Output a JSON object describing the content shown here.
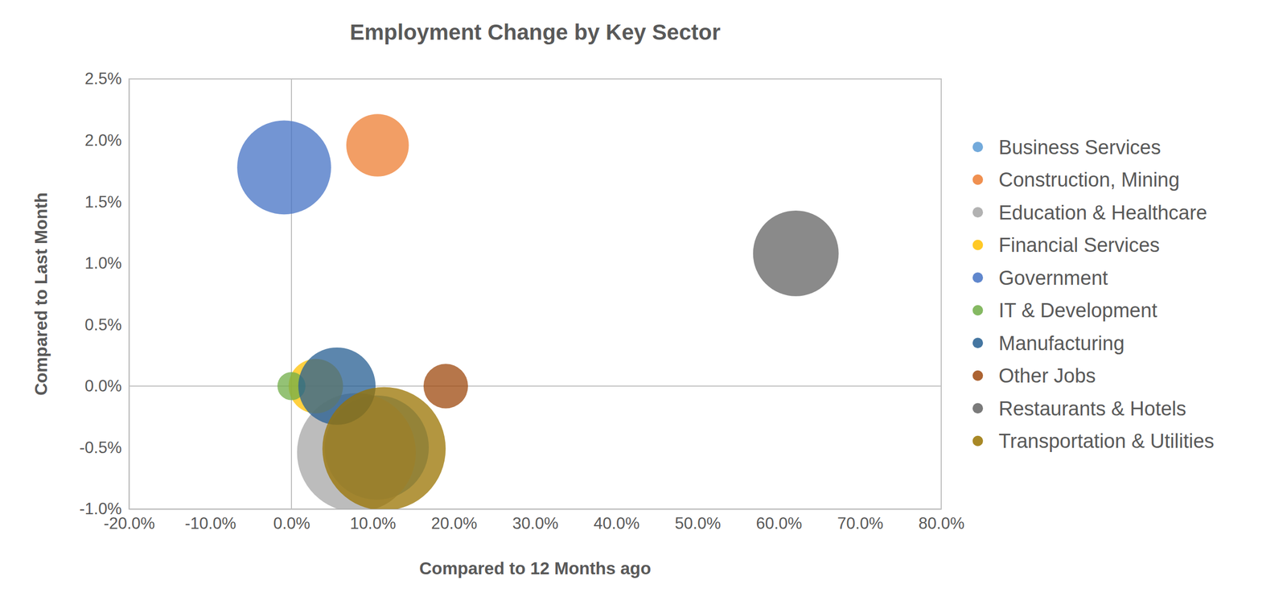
{
  "chart_data": {
    "type": "scatter",
    "title": "Employment Change by Key Sector",
    "x_label": "Compared to 12 Months ago",
    "y_label": "Compared to Last Month",
    "xlim": [
      -20,
      80
    ],
    "ylim": [
      -1,
      2.5
    ],
    "xticks": [
      {
        "value": -20,
        "label": "-20.0%"
      },
      {
        "value": -10,
        "label": "-10.0%"
      },
      {
        "value": 0,
        "label": "0.0%"
      },
      {
        "value": 10,
        "label": "10.0%"
      },
      {
        "value": 20,
        "label": "20.0%"
      },
      {
        "value": 30,
        "label": "30.0%"
      },
      {
        "value": 40,
        "label": "40.0%"
      },
      {
        "value": 50,
        "label": "50.0%"
      },
      {
        "value": 60,
        "label": "60.0%"
      },
      {
        "value": 70,
        "label": "70.0%"
      },
      {
        "value": 80,
        "label": "80.0%"
      }
    ],
    "yticks": [
      {
        "value": -1,
        "label": "-1.0%"
      },
      {
        "value": -0.5,
        "label": "-0.5%"
      },
      {
        "value": 0,
        "label": "0.0%"
      },
      {
        "value": 0.5,
        "label": "0.5%"
      },
      {
        "value": 1,
        "label": "1.0%"
      },
      {
        "value": 1.5,
        "label": "1.5%"
      },
      {
        "value": 2,
        "label": "2.0%"
      },
      {
        "value": 2.5,
        "label": "2.5%"
      }
    ],
    "grid": false,
    "legend": "right",
    "series": [
      {
        "name": "Business Services",
        "color": "#5b9bd5",
        "x": [
          10.5
        ],
        "values": [
          -0.5
        ],
        "size": [
          40
        ]
      },
      {
        "name": "Construction, Mining",
        "color": "#ed7d31",
        "x": [
          10.6
        ],
        "values": [
          1.96
        ],
        "size": [
          14.4
        ]
      },
      {
        "name": "Education & Healthcare",
        "color": "#a5a5a5",
        "x": [
          8.0
        ],
        "values": [
          -0.54
        ],
        "size": [
          52
        ]
      },
      {
        "name": "Financial Services",
        "color": "#ffc000",
        "x": [
          3.0
        ],
        "values": [
          0
        ],
        "size": [
          10.9
        ]
      },
      {
        "name": "Government",
        "color": "#4472c4",
        "x": [
          -0.9
        ],
        "values": [
          1.78
        ],
        "size": [
          32.5
        ]
      },
      {
        "name": "IT & Development",
        "color": "#70ad47",
        "x": [
          0.0
        ],
        "values": [
          0
        ],
        "size": [
          2.9
        ]
      },
      {
        "name": "Manufacturing",
        "color": "#255e91",
        "x": [
          5.6
        ],
        "values": [
          0
        ],
        "size": [
          22
        ]
      },
      {
        "name": "Other Jobs",
        "color": "#9e480e",
        "x": [
          19.0
        ],
        "values": [
          0
        ],
        "size": [
          7.3
        ]
      },
      {
        "name": "Restaurants & Hotels",
        "color": "#636363",
        "x": [
          62.1
        ],
        "values": [
          1.08
        ],
        "size": [
          27
        ]
      },
      {
        "name": "Transportation & Utilities",
        "color": "#997300",
        "x": [
          11.4
        ],
        "values": [
          -0.51
        ],
        "size": [
          56
        ]
      }
    ]
  }
}
